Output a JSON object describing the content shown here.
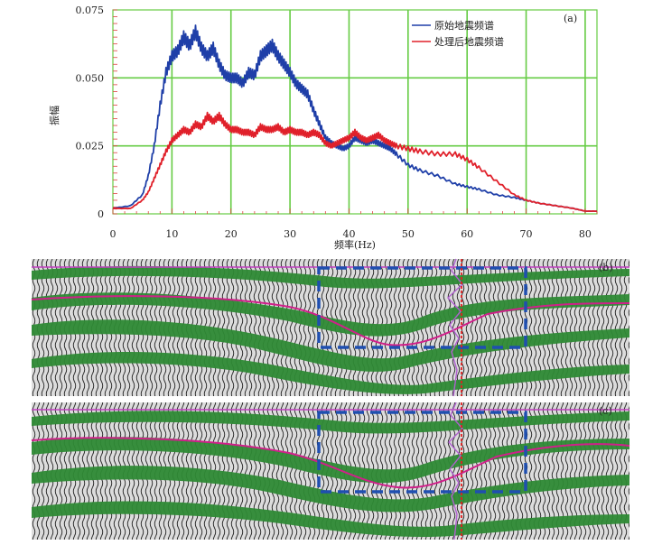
{
  "chart_data": [
    {
      "type": "line",
      "panel_label": "(a)",
      "xlabel": "频率(Hz)",
      "ylabel": "振幅",
      "xlim": [
        0,
        82
      ],
      "ylim": [
        0,
        0.075
      ],
      "grid": true,
      "grid_color": "#66cc44",
      "legend_position": "top-right",
      "x_ticks": [
        "0",
        "10",
        "20",
        "30",
        "40",
        "50",
        "60",
        "70",
        "80"
      ],
      "y_ticks": [
        "0",
        "0.025",
        "0.050",
        "0.075"
      ],
      "series": [
        {
          "name": "原始地震频谱",
          "color": "#1f3fa8",
          "x": [
            0,
            3,
            5,
            6,
            7,
            8,
            9,
            10,
            11,
            12,
            13,
            14,
            15,
            16,
            17,
            18,
            19,
            20,
            21,
            22,
            23,
            24,
            25,
            26,
            27,
            28,
            29,
            30,
            31,
            32,
            33,
            34,
            35,
            36,
            37,
            38,
            39,
            40,
            41,
            42,
            43,
            44,
            45,
            46,
            47,
            48,
            50,
            52,
            55,
            58,
            60,
            62,
            65,
            68,
            70,
            72,
            75,
            78,
            80,
            82
          ],
          "y": [
            0.002,
            0.003,
            0.007,
            0.014,
            0.025,
            0.04,
            0.052,
            0.058,
            0.06,
            0.065,
            0.062,
            0.067,
            0.061,
            0.058,
            0.061,
            0.055,
            0.051,
            0.05,
            0.05,
            0.048,
            0.052,
            0.051,
            0.058,
            0.06,
            0.062,
            0.058,
            0.055,
            0.052,
            0.048,
            0.046,
            0.044,
            0.038,
            0.033,
            0.028,
            0.026,
            0.025,
            0.024,
            0.025,
            0.028,
            0.027,
            0.026,
            0.027,
            0.026,
            0.025,
            0.024,
            0.022,
            0.018,
            0.016,
            0.014,
            0.011,
            0.01,
            0.009,
            0.007,
            0.006,
            0.005,
            0.004,
            0.003,
            0.002,
            0.001,
            0.001
          ]
        },
        {
          "name": "处理后地震频谱",
          "color": "#e0202a",
          "x": [
            0,
            3,
            5,
            6,
            7,
            8,
            9,
            10,
            11,
            12,
            13,
            14,
            15,
            16,
            17,
            18,
            19,
            20,
            21,
            22,
            23,
            24,
            25,
            26,
            27,
            28,
            29,
            30,
            31,
            32,
            33,
            34,
            35,
            36,
            37,
            38,
            39,
            40,
            41,
            42,
            43,
            44,
            45,
            46,
            47,
            48,
            50,
            52,
            55,
            58,
            60,
            62,
            65,
            68,
            70,
            72,
            75,
            78,
            80,
            82
          ],
          "y": [
            0.002,
            0.002,
            0.005,
            0.008,
            0.013,
            0.018,
            0.023,
            0.027,
            0.029,
            0.031,
            0.03,
            0.033,
            0.032,
            0.036,
            0.034,
            0.036,
            0.033,
            0.031,
            0.031,
            0.03,
            0.03,
            0.029,
            0.032,
            0.031,
            0.031,
            0.032,
            0.03,
            0.031,
            0.03,
            0.03,
            0.029,
            0.03,
            0.029,
            0.026,
            0.025,
            0.026,
            0.027,
            0.028,
            0.03,
            0.028,
            0.027,
            0.028,
            0.029,
            0.027,
            0.026,
            0.025,
            0.024,
            0.023,
            0.022,
            0.022,
            0.02,
            0.017,
            0.012,
            0.007,
            0.005,
            0.004,
            0.003,
            0.002,
            0.001,
            0.001
          ]
        }
      ]
    },
    {
      "type": "image",
      "panel_label": "(b)"
    },
    {
      "type": "image",
      "panel_label": "(c)"
    }
  ]
}
